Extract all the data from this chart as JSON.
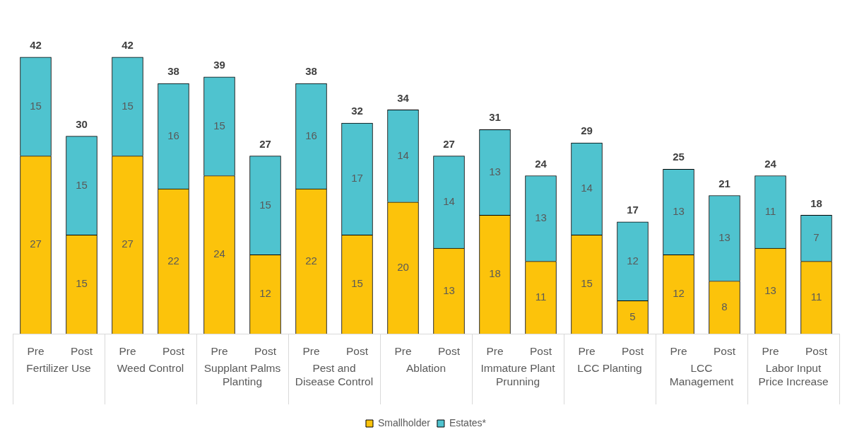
{
  "chart_data": {
    "type": "bar",
    "stacked": true,
    "data_labels": true,
    "legend": "bottom",
    "categories": [
      "Pre",
      "Post",
      "Pre",
      "Post",
      "Pre",
      "Post",
      "Pre",
      "Post",
      "Pre",
      "Post",
      "Pre",
      "Post",
      "Pre",
      "Post",
      "Pre",
      "Post",
      "Pre",
      "Post"
    ],
    "annotations": [
      "Fertilizer Use",
      "Weed Control",
      "Supplant Palms Planting",
      "Pest and Disease Control",
      "Ablation",
      "Immature Plant Prunning",
      "LCC Planting",
      "LCC Management",
      "Labor Input Price Increase"
    ],
    "series": [
      {
        "name": "Smallholder",
        "color": "#fcc30b",
        "values": [
          27,
          15,
          27,
          22,
          24,
          12,
          22,
          15,
          20,
          13,
          18,
          11,
          15,
          5,
          12,
          8,
          13,
          11
        ]
      },
      {
        "name": "Estates*",
        "color": "#4fc3cf",
        "values": [
          15,
          15,
          15,
          16,
          15,
          15,
          16,
          17,
          14,
          14,
          13,
          13,
          14,
          12,
          13,
          13,
          11,
          7
        ]
      }
    ],
    "totals": [
      "42",
      "30",
      "42",
      "38",
      "39",
      "27",
      "38",
      "32",
      "34",
      "27",
      "31",
      "24",
      "29",
      "17",
      "25",
      "21",
      "24",
      "18"
    ]
  }
}
